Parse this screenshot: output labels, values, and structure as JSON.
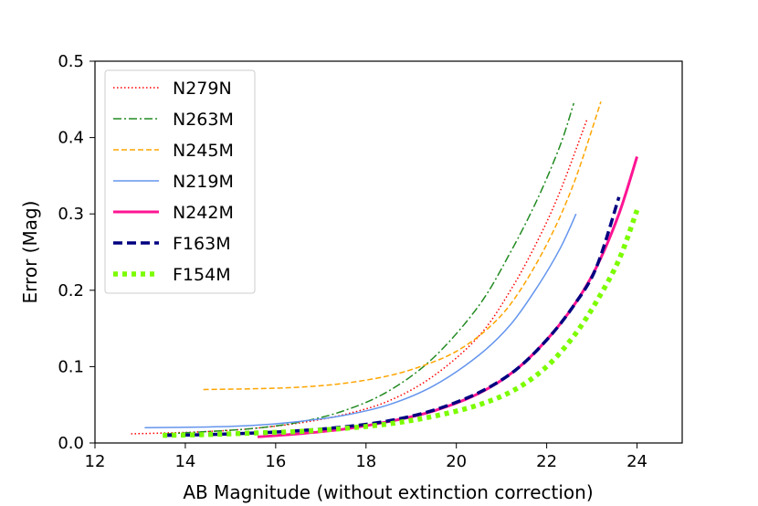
{
  "chart_data": {
    "type": "line",
    "title": "",
    "xlabel": "AB Magnitude (without extinction correction)",
    "ylabel": "Error (Mag)",
    "xlim": [
      12,
      25
    ],
    "ylim": [
      0,
      0.5
    ],
    "xticks": [
      "12",
      "14",
      "16",
      "18",
      "20",
      "22",
      "24"
    ],
    "yticks": [
      "0.0",
      "0.1",
      "0.2",
      "0.3",
      "0.4",
      "0.5"
    ],
    "grid": false,
    "legend_position": "top-left",
    "series": [
      {
        "name": "N279N",
        "color": "#ff0000",
        "style": "dotted",
        "x": [
          12.8,
          13.5,
          14.5,
          15.5,
          16.5,
          17.5,
          18.5,
          19.5,
          20.5,
          21.2,
          21.8,
          22.3,
          22.9
        ],
        "y": [
          0.012,
          0.013,
          0.015,
          0.019,
          0.026,
          0.037,
          0.055,
          0.088,
          0.14,
          0.2,
          0.265,
          0.33,
          0.425
        ]
      },
      {
        "name": "N263M",
        "color": "#228b22",
        "style": "dashdot",
        "x": [
          13.6,
          14.5,
          15.5,
          16.5,
          17.5,
          18.5,
          19.5,
          20.5,
          21.2,
          21.8,
          22.3,
          22.6
        ],
        "y": [
          0.012,
          0.015,
          0.019,
          0.027,
          0.042,
          0.068,
          0.112,
          0.18,
          0.25,
          0.32,
          0.39,
          0.445
        ]
      },
      {
        "name": "N245M",
        "color": "#ffa500",
        "style": "dashed",
        "x": [
          14.4,
          15.5,
          16.5,
          17.5,
          18.5,
          19.3,
          20.0,
          20.7,
          21.3,
          22.0,
          22.6,
          23.2
        ],
        "y": [
          0.07,
          0.071,
          0.073,
          0.078,
          0.088,
          0.102,
          0.12,
          0.15,
          0.19,
          0.26,
          0.34,
          0.447
        ]
      },
      {
        "name": "N219M",
        "color": "#6495ed",
        "style": "solid",
        "x": [
          13.1,
          14.5,
          15.5,
          16.5,
          17.5,
          18.5,
          19.5,
          20.5,
          21.2,
          21.8,
          22.3,
          22.65
        ],
        "y": [
          0.02,
          0.021,
          0.023,
          0.028,
          0.036,
          0.05,
          0.075,
          0.115,
          0.155,
          0.205,
          0.255,
          0.3
        ]
      },
      {
        "name": "N242M",
        "color": "#ff1493",
        "style": "solid-thick",
        "x": [
          15.6,
          16.5,
          17.5,
          18.5,
          19.5,
          20.5,
          21.3,
          22.0,
          22.6,
          23.1,
          23.6,
          24.0
        ],
        "y": [
          0.008,
          0.012,
          0.018,
          0.028,
          0.042,
          0.065,
          0.095,
          0.135,
          0.18,
          0.23,
          0.3,
          0.375
        ]
      },
      {
        "name": "F163M",
        "color": "#000080",
        "style": "dashed-thick",
        "x": [
          13.6,
          14.5,
          15.5,
          16.5,
          17.5,
          18.5,
          19.5,
          20.5,
          21.3,
          22.0,
          22.6,
          23.1,
          23.6
        ],
        "y": [
          0.01,
          0.011,
          0.013,
          0.016,
          0.021,
          0.029,
          0.043,
          0.066,
          0.095,
          0.135,
          0.18,
          0.23,
          0.322
        ]
      },
      {
        "name": "F154M",
        "color": "#7cfc00",
        "style": "dotted-thick",
        "x": [
          13.5,
          14.5,
          15.5,
          16.5,
          17.5,
          18.5,
          19.5,
          20.5,
          21.3,
          22.0,
          22.6,
          23.1,
          23.6,
          24.0
        ],
        "y": [
          0.01,
          0.011,
          0.013,
          0.015,
          0.019,
          0.025,
          0.035,
          0.05,
          0.07,
          0.1,
          0.14,
          0.185,
          0.24,
          0.305
        ]
      }
    ]
  }
}
